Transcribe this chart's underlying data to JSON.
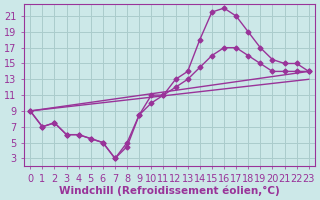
{
  "xlabel": "Windchill (Refroidissement éolien,°C)",
  "background_color": "#cce8e8",
  "grid_color": "#aacccc",
  "line_color": "#993399",
  "x_ticks": [
    0,
    1,
    2,
    3,
    4,
    5,
    6,
    7,
    8,
    9,
    10,
    11,
    12,
    13,
    14,
    15,
    16,
    17,
    18,
    19,
    20,
    21,
    22,
    23
  ],
  "y_ticks": [
    3,
    5,
    7,
    9,
    11,
    13,
    15,
    17,
    19,
    21
  ],
  "xlim": [
    -0.5,
    23.5
  ],
  "ylim": [
    2,
    22.5
  ],
  "line1_x": [
    0,
    1,
    2,
    3,
    4,
    5,
    6,
    7,
    8,
    9,
    10,
    11,
    12,
    13,
    14,
    15,
    16,
    17,
    18,
    19,
    20,
    21,
    22,
    23
  ],
  "line1_y": [
    9,
    7,
    7.5,
    6,
    6,
    5.5,
    5,
    3,
    4.5,
    8.5,
    11,
    11,
    13,
    14,
    18,
    21.5,
    22,
    21,
    19,
    17,
    15.5,
    15,
    15,
    14
  ],
  "line2_x": [
    0,
    1,
    2,
    3,
    4,
    5,
    6,
    7,
    8,
    9,
    10,
    11,
    12,
    13,
    14,
    15,
    16,
    17,
    18,
    19,
    20,
    21,
    22,
    23
  ],
  "line2_y": [
    9,
    7,
    7.5,
    6,
    6,
    5.5,
    5,
    3,
    5,
    8.5,
    10,
    11,
    12,
    13,
    14.5,
    16,
    17,
    17,
    16,
    15,
    14,
    14,
    14,
    14
  ],
  "line3_x": [
    0,
    23
  ],
  "line3_y": [
    9,
    14
  ],
  "line4_x": [
    0,
    23
  ],
  "line4_y": [
    9,
    13
  ],
  "font_color": "#993399",
  "tick_fontsize": 7,
  "label_fontsize": 7.5,
  "marker_size": 2.5,
  "line_width": 1.0
}
